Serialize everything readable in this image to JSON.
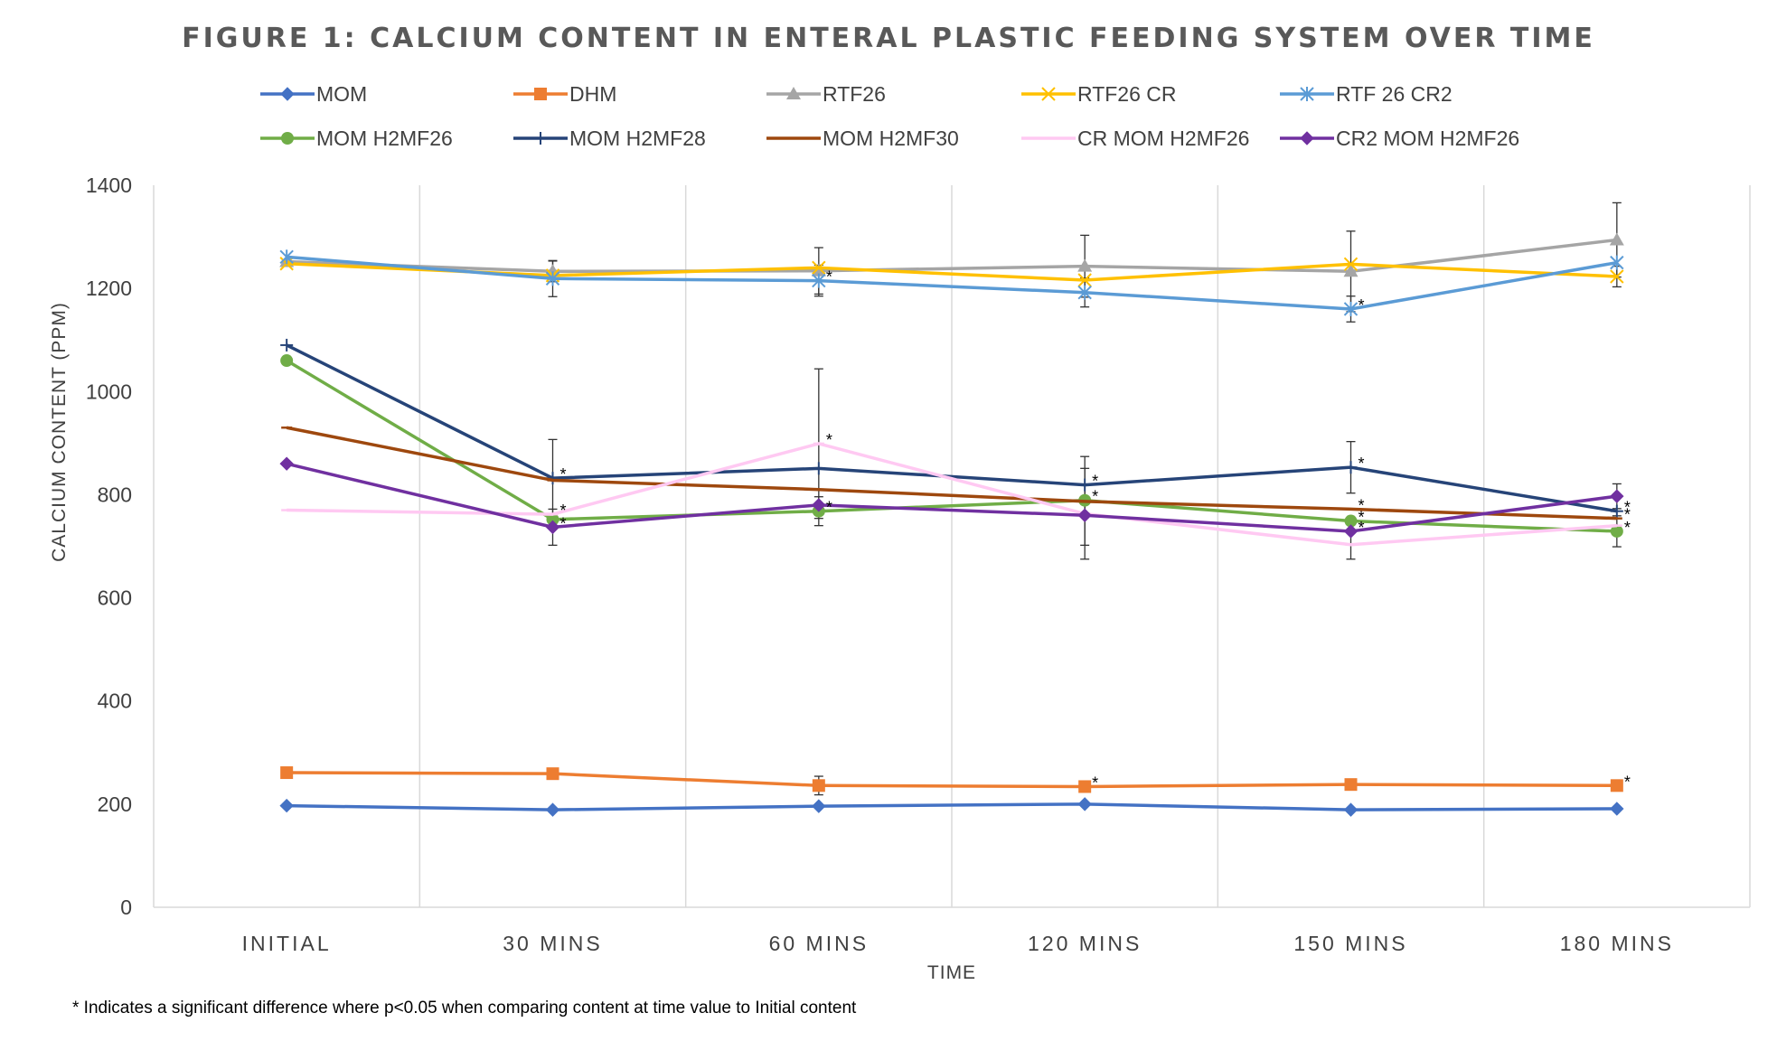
{
  "chart_data": {
    "type": "line",
    "title": "FIGURE 1: CALCIUM CONTENT IN ENTERAL PLASTIC FEEDING SYSTEM OVER TIME",
    "xlabel": "TIME",
    "ylabel": "CALCIUM CONTENT (PPM)",
    "footnote": "* Indicates a significant difference where p<0.05 when comparing content at time value to Initial content",
    "categories": [
      "INITIAL",
      "30 MINS",
      "60 MINS",
      "120 MINS",
      "150 MINS",
      "180 MINS"
    ],
    "ylim": [
      0,
      1400
    ],
    "yticks": [
      0,
      200,
      400,
      600,
      800,
      1000,
      1200,
      1400
    ],
    "grid": "vertical",
    "legend_position": "top",
    "series": [
      {
        "name": "MOM",
        "color": "#4472C4",
        "marker": "diamond",
        "values": [
          197,
          189,
          196,
          200,
          189,
          191
        ],
        "errors": [
          0,
          0,
          0,
          0,
          0,
          0
        ],
        "sig": [
          false,
          false,
          false,
          false,
          false,
          false
        ]
      },
      {
        "name": "DHM",
        "color": "#ED7D31",
        "marker": "square",
        "values": [
          261,
          259,
          236,
          234,
          238,
          236
        ],
        "errors": [
          0,
          0,
          18,
          0,
          0,
          0
        ],
        "sig": [
          false,
          false,
          false,
          true,
          false,
          true
        ]
      },
      {
        "name": "RTF26",
        "color": "#A5A5A5",
        "marker": "triangle",
        "values": [
          1252,
          1233,
          1234,
          1243,
          1233,
          1294
        ],
        "errors": [
          0,
          20,
          45,
          60,
          78,
          72
        ],
        "sig": [
          false,
          false,
          false,
          false,
          false,
          false
        ]
      },
      {
        "name": "RTF26 CR",
        "color": "#FFC000",
        "marker": "x",
        "values": [
          1248,
          1225,
          1240,
          1216,
          1247,
          1223
        ],
        "errors": [
          0,
          0,
          0,
          0,
          0,
          20
        ],
        "sig": [
          false,
          false,
          false,
          false,
          false,
          false
        ]
      },
      {
        "name": "RTF 26 CR2",
        "color": "#5B9BD5",
        "marker": "asterisk",
        "values": [
          1261,
          1219,
          1215,
          1192,
          1160,
          1250
        ],
        "errors": [
          0,
          35,
          30,
          28,
          25,
          0
        ],
        "sig": [
          false,
          false,
          true,
          false,
          true,
          false
        ]
      },
      {
        "name": "MOM H2MF26",
        "color": "#70AD47",
        "marker": "circle",
        "values": [
          1060,
          752,
          768,
          789,
          749,
          729
        ],
        "errors": [
          0,
          0,
          28,
          0,
          0,
          30
        ],
        "sig": [
          false,
          false,
          true,
          true,
          true,
          true
        ]
      },
      {
        "name": "MOM H2MF28",
        "color": "#264478",
        "marker": "plus",
        "values": [
          1090,
          832,
          851,
          819,
          853,
          768
        ],
        "errors": [
          0,
          75,
          0,
          55,
          50,
          0
        ],
        "sig": [
          false,
          true,
          false,
          true,
          true,
          true
        ]
      },
      {
        "name": "MOM H2MF30",
        "color": "#9E480E",
        "marker": "dash",
        "values": [
          930,
          828,
          810,
          787,
          772,
          754
        ],
        "errors": [
          0,
          0,
          0,
          0,
          0,
          0
        ],
        "sig": [
          false,
          false,
          false,
          false,
          true,
          true
        ]
      },
      {
        "name": "CR MOM H2MF26",
        "color": "#FFC9F2",
        "marker": "dash",
        "values": [
          770,
          762,
          899,
          763,
          703,
          740
        ],
        "errors": [
          0,
          0,
          145,
          88,
          28,
          0
        ],
        "sig": [
          false,
          true,
          true,
          false,
          false,
          false
        ]
      },
      {
        "name": "CR2 MOM H2MF26",
        "color": "#7030A0",
        "marker": "diamond",
        "values": [
          860,
          737,
          780,
          760,
          729,
          797
        ],
        "errors": [
          0,
          35,
          0,
          58,
          0,
          24
        ],
        "sig": [
          false,
          true,
          false,
          false,
          true,
          false
        ]
      }
    ]
  }
}
